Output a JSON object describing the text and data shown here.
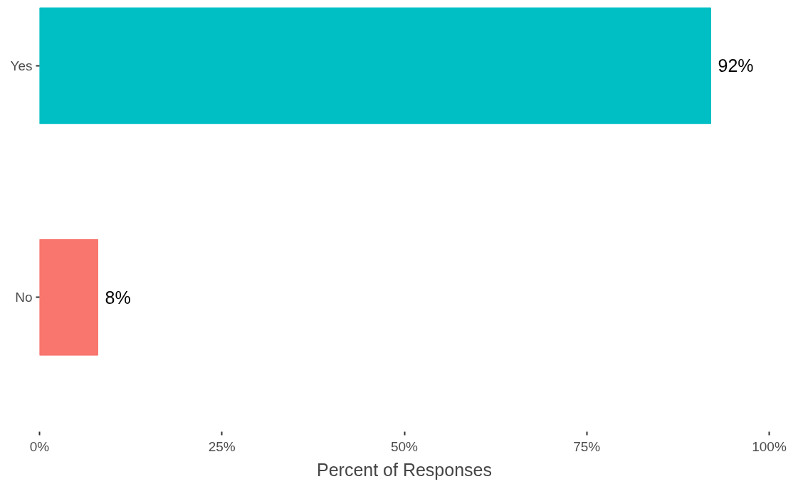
{
  "chart_data": {
    "type": "bar",
    "orientation": "horizontal",
    "xlabel": "Percent of Responses",
    "categories": [
      "Yes",
      "No"
    ],
    "values": [
      92,
      8
    ],
    "colors": [
      "#00bfc4",
      "#f8766d"
    ],
    "value_labels": [
      "92%",
      "8%"
    ],
    "xlim": [
      0,
      100
    ],
    "xticks": [
      {
        "value": 0,
        "label": "0%"
      },
      {
        "value": 25,
        "label": "25%"
      },
      {
        "value": 50,
        "label": "50%"
      },
      {
        "value": 75,
        "label": "75%"
      },
      {
        "value": 100,
        "label": "100%"
      }
    ],
    "grid": false
  }
}
